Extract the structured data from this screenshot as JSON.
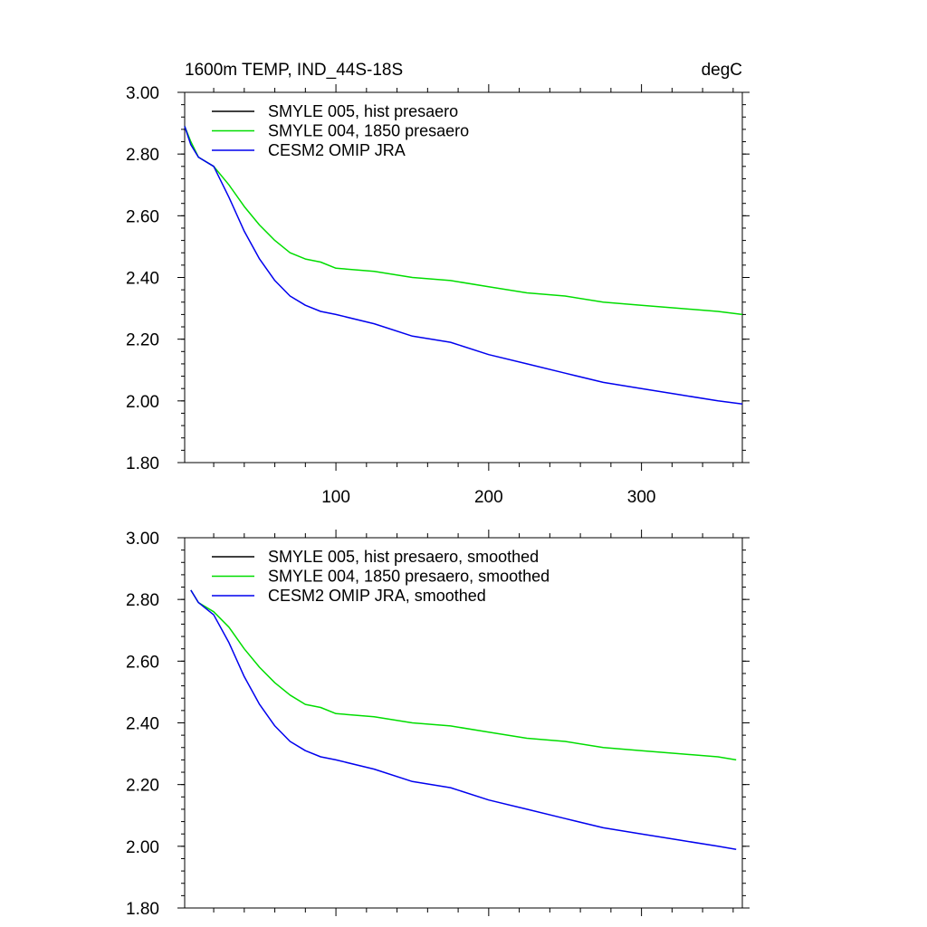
{
  "title_left": "1600m TEMP, IND_44S-18S",
  "title_right": "degC",
  "colors": {
    "series_1": "#000000",
    "series_2": "#00dd00",
    "series_3": "#0000ee"
  },
  "chart_data": [
    {
      "type": "line",
      "panel": "top",
      "xlim": [
        1,
        366
      ],
      "ylim": [
        1.8,
        3.0
      ],
      "xticks": [
        100,
        200,
        300
      ],
      "yticks": [
        1.8,
        2.0,
        2.2,
        2.4,
        2.6,
        2.8,
        3.0
      ],
      "ytick_labels": [
        "1.80",
        "2.00",
        "2.20",
        "2.40",
        "2.60",
        "2.80",
        "3.00"
      ],
      "xtick_labels": [
        "100",
        "200",
        "300"
      ],
      "grid": false,
      "legend_position": "top-left",
      "series": [
        {
          "name": "SMYLE 005, hist presaero",
          "x": [],
          "values": []
        },
        {
          "name": "SMYLE 004, 1850 presaero",
          "x": [
            1,
            5,
            10,
            20,
            30,
            40,
            50,
            60,
            70,
            80,
            90,
            100,
            125,
            150,
            175,
            200,
            225,
            250,
            275,
            300,
            325,
            350,
            366
          ],
          "values": [
            2.89,
            2.84,
            2.79,
            2.76,
            2.7,
            2.63,
            2.57,
            2.52,
            2.48,
            2.46,
            2.45,
            2.43,
            2.42,
            2.4,
            2.39,
            2.37,
            2.35,
            2.34,
            2.32,
            2.31,
            2.3,
            2.29,
            2.28
          ]
        },
        {
          "name": "CESM2 OMIP JRA",
          "x": [
            1,
            5,
            10,
            20,
            30,
            40,
            50,
            60,
            70,
            80,
            90,
            100,
            125,
            150,
            175,
            200,
            225,
            250,
            275,
            300,
            325,
            350,
            366
          ],
          "values": [
            2.89,
            2.83,
            2.79,
            2.76,
            2.66,
            2.55,
            2.46,
            2.39,
            2.34,
            2.31,
            2.29,
            2.28,
            2.25,
            2.21,
            2.19,
            2.15,
            2.12,
            2.09,
            2.06,
            2.04,
            2.02,
            2.0,
            1.99
          ]
        }
      ]
    },
    {
      "type": "line",
      "panel": "bottom",
      "xlim": [
        1,
        366
      ],
      "ylim": [
        1.8,
        3.0
      ],
      "xticks": [
        100,
        200,
        300
      ],
      "yticks": [
        1.8,
        2.0,
        2.2,
        2.4,
        2.6,
        2.8,
        3.0
      ],
      "ytick_labels": [
        "1.80",
        "2.00",
        "2.20",
        "2.40",
        "2.60",
        "2.80",
        "3.00"
      ],
      "grid": false,
      "legend_position": "top-left",
      "series": [
        {
          "name": "SMYLE 005, hist presaero, smoothed",
          "x": [],
          "values": []
        },
        {
          "name": "SMYLE 004, 1850 presaero, smoothed",
          "x": [
            5,
            10,
            20,
            30,
            40,
            50,
            60,
            70,
            80,
            90,
            100,
            125,
            150,
            175,
            200,
            225,
            250,
            275,
            300,
            325,
            350,
            362
          ],
          "values": [
            2.83,
            2.79,
            2.76,
            2.71,
            2.64,
            2.58,
            2.53,
            2.49,
            2.46,
            2.45,
            2.43,
            2.42,
            2.4,
            2.39,
            2.37,
            2.35,
            2.34,
            2.32,
            2.31,
            2.3,
            2.29,
            2.28
          ]
        },
        {
          "name": "CESM2 OMIP JRA, smoothed",
          "x": [
            5,
            10,
            20,
            30,
            40,
            50,
            60,
            70,
            80,
            90,
            100,
            125,
            150,
            175,
            200,
            225,
            250,
            275,
            300,
            325,
            350,
            362
          ],
          "values": [
            2.83,
            2.79,
            2.75,
            2.66,
            2.55,
            2.46,
            2.39,
            2.34,
            2.31,
            2.29,
            2.28,
            2.25,
            2.21,
            2.19,
            2.15,
            2.12,
            2.09,
            2.06,
            2.04,
            2.02,
            2.0,
            1.99
          ]
        }
      ]
    }
  ]
}
